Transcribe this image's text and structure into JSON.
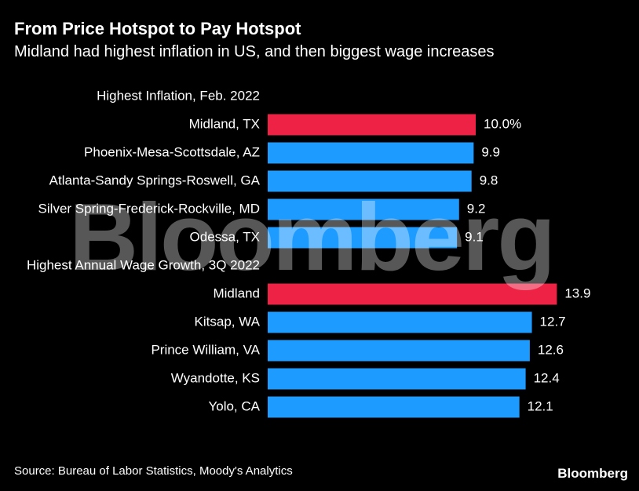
{
  "header": {
    "title": "From Price Hotspot to Pay Hotspot",
    "subtitle": "Midland had highest inflation in US, and then biggest wage increases"
  },
  "chart_data": {
    "type": "bar",
    "orientation": "horizontal",
    "grid": false,
    "colors": {
      "highlight": "#ee2244",
      "default": "#1e9bff"
    },
    "groups": [
      {
        "label": "Highest Inflation, Feb. 2022",
        "unit": "%",
        "categories": [
          "Midland, TX",
          "Phoenix-Mesa-Scottsdale, AZ",
          "Atlanta-Sandy Springs-Roswell, GA",
          "Silver Spring-Frederick-Rockville, MD",
          "Odessa, TX"
        ],
        "values": [
          10.0,
          9.9,
          9.8,
          9.2,
          9.1
        ],
        "value_labels": [
          "10.0%",
          "9.9",
          "9.8",
          "9.2",
          "9.1"
        ],
        "highlight": [
          true,
          false,
          false,
          false,
          false
        ]
      },
      {
        "label": "Highest Annual Wage Growth, 3Q 2022",
        "unit": "%",
        "categories": [
          "Midland",
          "Kitsap, WA",
          "Prince William, VA",
          "Wyandotte, KS",
          "Yolo, CA"
        ],
        "values": [
          13.9,
          12.7,
          12.6,
          12.4,
          12.1
        ],
        "value_labels": [
          "13.9",
          "12.7",
          "12.6",
          "12.4",
          "12.1"
        ],
        "highlight": [
          true,
          false,
          false,
          false,
          false
        ]
      }
    ]
  },
  "footer": {
    "source": "Source: Bureau of Labor Statistics, Moody's Analytics",
    "logo": "Bloomberg",
    "watermark": "Bloomberg"
  }
}
